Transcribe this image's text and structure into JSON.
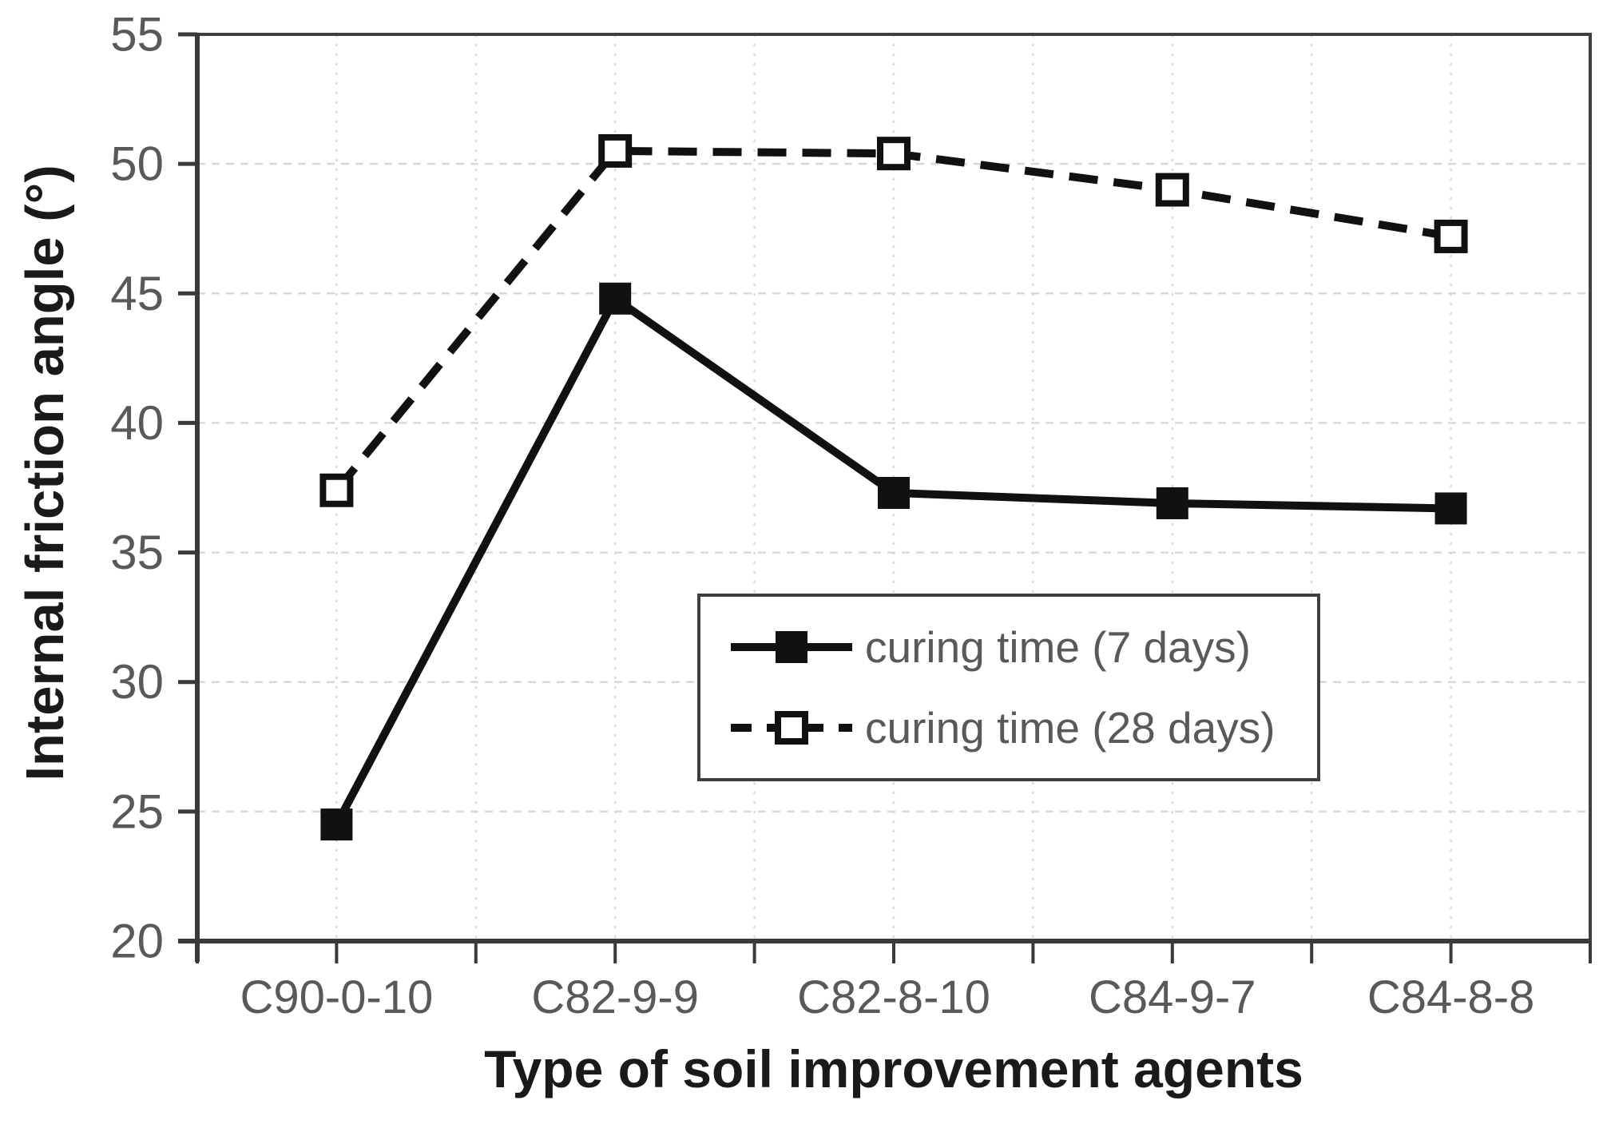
{
  "chart_data": {
    "type": "line",
    "title": "",
    "xlabel": "Type of soil improvement agents",
    "ylabel": "Internal friction angle (°)",
    "categories": [
      "C90-0-10",
      "C82-9-9",
      "C82-8-10",
      "C84-9-7",
      "C84-8-8"
    ],
    "series": [
      {
        "name": "curing time (7 days)",
        "line_style": "solid",
        "marker": "filled-square",
        "values": [
          24.5,
          44.8,
          37.3,
          36.9,
          36.7
        ]
      },
      {
        "name": "curing time (28 days)",
        "line_style": "dashed",
        "marker": "open-square",
        "values": [
          37.4,
          50.5,
          50.4,
          49.0,
          47.2
        ]
      }
    ],
    "ylim": [
      20,
      55
    ],
    "y_ticks": [
      20,
      25,
      30,
      35,
      40,
      45,
      50,
      55
    ],
    "grid": "on",
    "legend_position": "inside-lower-center"
  },
  "colors": {
    "background": "#ffffff",
    "series_line": "#111111",
    "axis_line": "#3a3a3a",
    "plot_border": "#3f3f3f",
    "gridline_h": "#d9d9d9",
    "gridline_v": "#d3dbde",
    "tick_label": "#595959",
    "axis_title": "#1a1a1a",
    "legend_text": "#595959",
    "legend_border": "#3f3f3f"
  }
}
